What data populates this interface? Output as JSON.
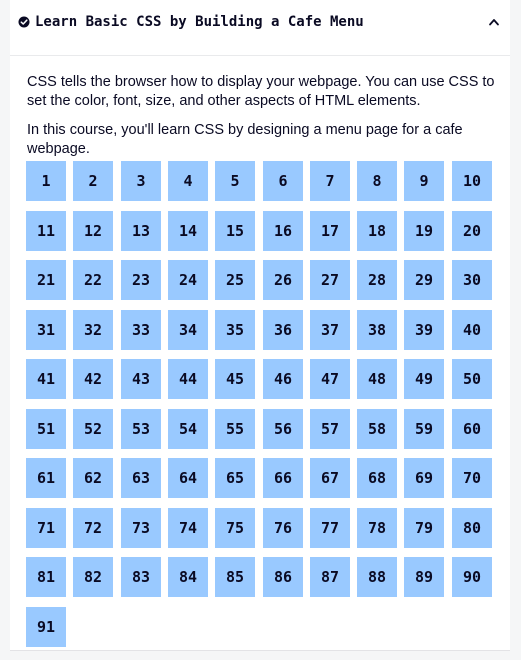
{
  "header": {
    "title": "Learn Basic CSS by Building a Cafe Menu",
    "completed_icon": "check-circle-icon",
    "toggle_icon": "chevron-up-icon"
  },
  "intro": {
    "paragraphs": [
      "CSS tells the browser how to display your webpage. You can use CSS to set the color, font, size, and other aspects of HTML elements.",
      "In this course, you'll learn CSS by designing a menu page for a cafe webpage."
    ]
  },
  "steps": {
    "count": 91,
    "labels": [
      "1",
      "2",
      "3",
      "4",
      "5",
      "6",
      "7",
      "8",
      "9",
      "10",
      "11",
      "12",
      "13",
      "14",
      "15",
      "16",
      "17",
      "18",
      "19",
      "20",
      "21",
      "22",
      "23",
      "24",
      "25",
      "26",
      "27",
      "28",
      "29",
      "30",
      "31",
      "32",
      "33",
      "34",
      "35",
      "36",
      "37",
      "38",
      "39",
      "40",
      "41",
      "42",
      "43",
      "44",
      "45",
      "46",
      "47",
      "48",
      "49",
      "50",
      "51",
      "52",
      "53",
      "54",
      "55",
      "56",
      "57",
      "58",
      "59",
      "60",
      "61",
      "62",
      "63",
      "64",
      "65",
      "66",
      "67",
      "68",
      "69",
      "70",
      "71",
      "72",
      "73",
      "74",
      "75",
      "76",
      "77",
      "78",
      "79",
      "80",
      "81",
      "82",
      "83",
      "84",
      "85",
      "86",
      "87",
      "88",
      "89",
      "90",
      "91"
    ]
  },
  "colors": {
    "step_bg": "#99c9ff",
    "text": "#0a0a23",
    "page_bg": "#f5f6f7",
    "card_bg": "#ffffff"
  }
}
